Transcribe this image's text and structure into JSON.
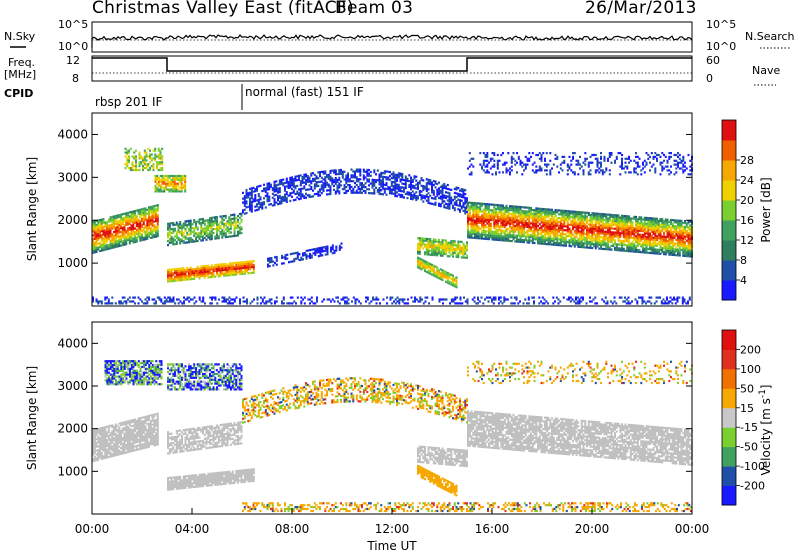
{
  "header": {
    "title": "Christmas Valley East (fitACF)",
    "beam": "Beam 03",
    "date": "26/Mar/2013"
  },
  "panels": {
    "sky_label": "N.Sky",
    "search_label": "N.Search",
    "freq_label_1": "Freq.",
    "freq_label_2": "[MHz]",
    "nave_label": "Nave",
    "cpid_label": "CPID",
    "cpid_1": "rbsp 201 IF",
    "cpid_2": "normal (fast) 151 IF"
  },
  "colors": {
    "power_scale": [
      "#1a1aff",
      "#1f4fa8",
      "#2f7f5f",
      "#3fa060",
      "#7ccf30",
      "#f0d000",
      "#f7a800",
      "#f06000",
      "#e01010"
    ],
    "velocity_scale": [
      "#1a1aff",
      "#1f4fa8",
      "#3fa060",
      "#7ccf30",
      "#c8c8c8",
      "#f7a800",
      "#f07000",
      "#e03020",
      "#e01010"
    ],
    "ground_scatter": "#c0c0c0"
  },
  "chart_data": [
    {
      "type": "line",
      "name": "noise",
      "xlim": [
        0,
        24
      ],
      "x_ticks": [],
      "y_ticks_left": [
        "10^5",
        "10^0"
      ],
      "y_ticks_right": [
        "10^5",
        "10^0"
      ]
    },
    {
      "type": "line",
      "name": "frequency-nave",
      "y_ticks_left": [
        "12",
        "8"
      ],
      "y_ticks_right": [
        "60",
        "0"
      ],
      "segments": [
        {
          "x0": 0.0,
          "x1": 3.0,
          "freq": 12.6
        },
        {
          "x0": 3.0,
          "x1": 15.0,
          "freq": 10.0
        },
        {
          "x0": 15.0,
          "x1": 24.0,
          "freq": 12.6
        }
      ]
    },
    {
      "type": "heatmap",
      "name": "power",
      "xlabel": "",
      "ylabel": "Slant Range [km]",
      "xlim": [
        0,
        24
      ],
      "ylim": [
        0,
        4500
      ],
      "y_ticks": [
        "1000",
        "2000",
        "3000",
        "4000"
      ],
      "colorbar_label": "Power [dB]",
      "colorbar_ticks": [
        "4",
        "8",
        "12",
        "16",
        "20",
        "24",
        "28"
      ]
    },
    {
      "type": "heatmap",
      "name": "velocity",
      "xlabel": "Time UT",
      "ylabel": "Slant Range [km]",
      "xlim": [
        0,
        24
      ],
      "ylim": [
        0,
        4500
      ],
      "x_ticks": [
        "00:00",
        "04:00",
        "08:00",
        "12:00",
        "16:00",
        "20:00",
        "00:00"
      ],
      "y_ticks": [
        "1000",
        "2000",
        "3000",
        "4000"
      ],
      "colorbar_label": "Velocity [m s",
      "colorbar_label_sup": "-1",
      "colorbar_label_end": "]",
      "colorbar_ticks": [
        "200",
        "100",
        "50",
        "15",
        "-15",
        "-50",
        "-100",
        "-200"
      ]
    }
  ]
}
